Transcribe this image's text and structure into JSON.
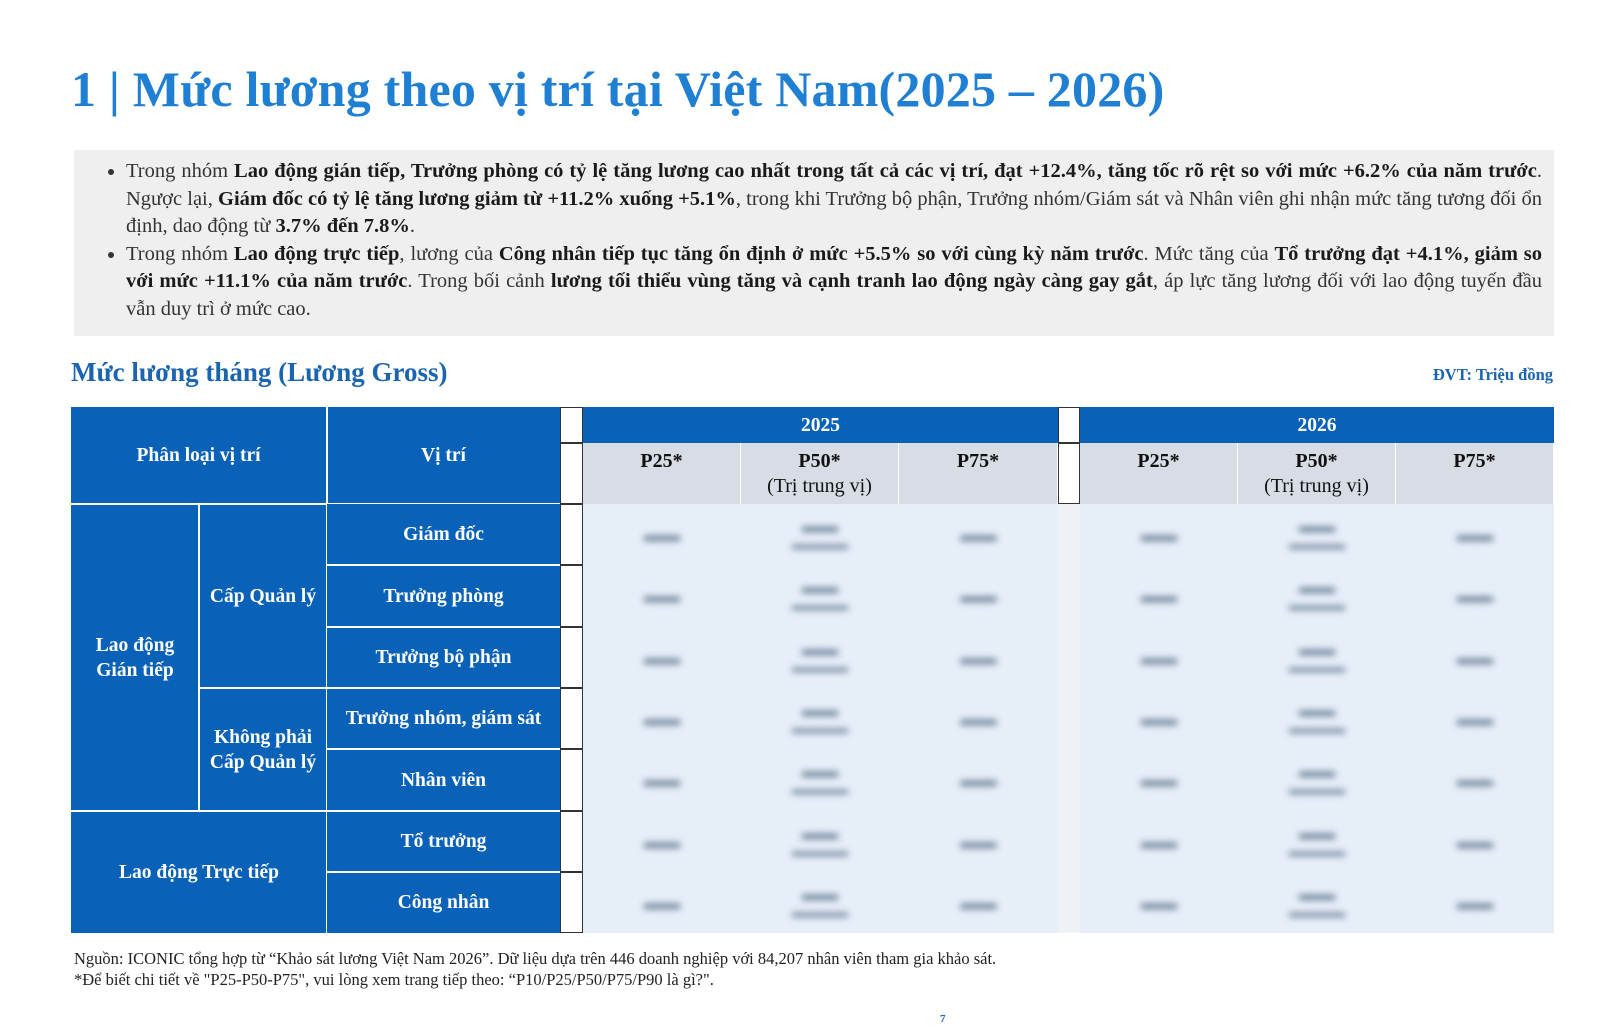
{
  "title": "1 | Mức lương theo vị trí tại Việt Nam(2025 – 2026)",
  "summary": {
    "bullet1": [
      {
        "t": "Trong nhóm ",
        "b": false
      },
      {
        "t": "Lao động gián tiếp, Trưởng phòng có tỷ lệ tăng lương cao nhất trong tất cả các vị trí, đạt +12.4%, tăng tốc rõ rệt so với mức +6.2% của năm trước",
        "b": true
      },
      {
        "t": ". Ngược lại, ",
        "b": false
      },
      {
        "t": "Giám đốc có tỷ lệ tăng lương giảm từ +11.2% xuống +5.1%",
        "b": true
      },
      {
        "t": ", trong khi Trưởng bộ phận, Trưởng nhóm/Giám sát và Nhân viên ghi nhận mức tăng tương đối ổn định, dao động từ ",
        "b": false
      },
      {
        "t": "3.7% đến 7.8%",
        "b": true
      },
      {
        "t": ".",
        "b": false
      }
    ],
    "bullet2": [
      {
        "t": "Trong nhóm ",
        "b": false
      },
      {
        "t": "Lao động trực tiếp",
        "b": true
      },
      {
        "t": ", lương của ",
        "b": false
      },
      {
        "t": "Công nhân tiếp tục tăng ổn định ở mức +5.5% so với cùng kỳ năm trước",
        "b": true
      },
      {
        "t": ". Mức tăng của ",
        "b": false
      },
      {
        "t": "Tổ trưởng đạt +4.1%, giảm so với mức +11.1% của năm trước",
        "b": true
      },
      {
        "t": ". Trong bối cảnh ",
        "b": false
      },
      {
        "t": "lương tối thiểu vùng tăng và cạnh tranh lao động ngày càng gay gắt",
        "b": true
      },
      {
        "t": ", áp lực tăng lương đối với lao động tuyến đầu vẫn duy trì ở mức cao.",
        "b": false
      }
    ]
  },
  "section": {
    "subtitle": "Mức lương tháng (Lương Gross)",
    "unit": "ĐVT: Triệu đồng"
  },
  "table": {
    "head": {
      "category": "Phân loại vị trí",
      "position": "Vị trí",
      "year1": "2025",
      "year2": "2026",
      "p25": "P25*",
      "p50": "P50*",
      "p50_note": "(Trị trung vị)",
      "p75": "P75*"
    },
    "groups": {
      "indirect": "Lao động\nGián tiếp",
      "management": "Cấp Quản lý",
      "non_management": "Không phải\nCấp Quản lý",
      "direct": "Lao động Trực tiếp"
    },
    "positions": [
      "Giám đốc",
      "Trưởng phòng",
      "Trưởng bộ phận",
      "Trưởng nhóm, giám sát",
      "Nhân viên",
      "Tổ trưởng",
      "Công nhân"
    ]
  },
  "footnote": {
    "line1": "Nguồn: ICONIC tổng hợp từ “Khảo sát lương Việt Nam 2026”. Dữ liệu dựa trên 446 doanh nghiệp với 84,207 nhân viên tham gia khảo sát.",
    "line2": "*Để biết chi tiết về \"P25-P50-P75\", vui lòng xem trang tiếp theo: “P10/P25/P50/P75/P90 là gì?\"."
  },
  "page_number": "7",
  "colors": {
    "title": "#1f7fd3",
    "table_blue": "#0a62b8",
    "header_grey": "#d7dce5",
    "summary_bg": "#efefef"
  }
}
